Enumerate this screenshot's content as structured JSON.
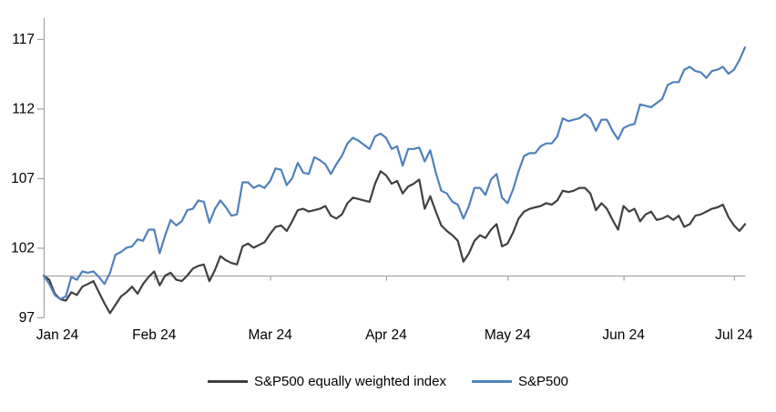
{
  "chart_data": {
    "type": "line",
    "title": "",
    "x_axis": {
      "labels": [
        "Jan 24",
        "Feb 24",
        "Mar 24",
        "Apr 24",
        "May 24",
        "Jun 24",
        "Jul 24"
      ],
      "tick_indices": [
        0,
        20,
        41,
        62,
        84,
        105,
        125
      ]
    },
    "y_axis": {
      "ticks": [
        117,
        112,
        107,
        102,
        97
      ],
      "min": 97,
      "max": 117,
      "baseline_value": 100
    },
    "grid": "off",
    "legend_position": "bottom-center",
    "series": [
      {
        "name": "S&P500 equally weighted index",
        "color": "#404040",
        "values": [
          100.0,
          99.7,
          98.7,
          98.3,
          98.2,
          98.8,
          98.6,
          99.2,
          99.4,
          99.6,
          98.8,
          98.0,
          97.3,
          97.9,
          98.5,
          98.8,
          99.2,
          98.7,
          99.4,
          99.9,
          100.3,
          99.3,
          100.0,
          100.2,
          99.7,
          99.6,
          100.0,
          100.5,
          100.7,
          100.8,
          99.6,
          100.4,
          101.4,
          101.1,
          100.9,
          100.8,
          102.1,
          102.3,
          102.0,
          102.2,
          102.4,
          103.0,
          103.5,
          103.6,
          103.2,
          103.9,
          104.7,
          104.8,
          104.6,
          104.7,
          104.8,
          105.0,
          104.3,
          104.1,
          104.4,
          105.2,
          105.6,
          105.5,
          105.4,
          105.3,
          106.6,
          107.5,
          107.2,
          106.6,
          106.8,
          105.9,
          106.4,
          106.6,
          106.9,
          104.8,
          105.7,
          104.6,
          103.6,
          103.2,
          102.9,
          102.5,
          101.0,
          101.6,
          102.5,
          102.9,
          102.7,
          103.3,
          103.7,
          102.1,
          102.3,
          103.1,
          104.1,
          104.6,
          104.8,
          104.9,
          105.0,
          105.2,
          105.1,
          105.4,
          106.1,
          106.0,
          106.1,
          106.3,
          106.3,
          105.9,
          104.7,
          105.2,
          104.8,
          104.0,
          103.3,
          105.0,
          104.6,
          104.8,
          103.9,
          104.4,
          104.6,
          104.0,
          104.1,
          104.3,
          104.0,
          104.3,
          103.5,
          103.7,
          104.3,
          104.4,
          104.6,
          104.8,
          104.9,
          105.1,
          104.2,
          103.6,
          103.2,
          103.7
        ]
      },
      {
        "name": "S&P500",
        "color": "#4f81bd",
        "values": [
          100.0,
          99.4,
          98.6,
          98.3,
          98.5,
          99.9,
          99.7,
          100.3,
          100.2,
          100.3,
          99.9,
          99.4,
          100.2,
          101.5,
          101.7,
          102.0,
          102.1,
          102.6,
          102.5,
          103.3,
          103.3,
          101.6,
          102.9,
          104.0,
          103.6,
          103.9,
          104.7,
          104.8,
          105.4,
          105.3,
          103.8,
          104.8,
          105.4,
          104.9,
          104.3,
          104.4,
          106.7,
          106.7,
          106.3,
          106.5,
          106.3,
          106.8,
          107.7,
          107.6,
          106.5,
          107.0,
          108.1,
          107.4,
          107.3,
          108.5,
          108.3,
          108.0,
          107.3,
          108.0,
          108.6,
          109.5,
          109.9,
          109.7,
          109.4,
          109.1,
          110.0,
          110.2,
          109.9,
          109.1,
          109.3,
          107.9,
          109.1,
          109.1,
          109.2,
          108.2,
          109.0,
          107.4,
          106.1,
          105.9,
          105.3,
          105.1,
          104.1,
          105.0,
          106.3,
          106.3,
          105.8,
          106.9,
          107.3,
          105.6,
          105.2,
          106.2,
          107.5,
          108.6,
          108.8,
          108.8,
          109.3,
          109.5,
          109.5,
          110.0,
          111.3,
          111.1,
          111.2,
          111.3,
          111.6,
          111.3,
          110.4,
          111.2,
          111.2,
          110.4,
          109.8,
          110.6,
          110.8,
          110.9,
          112.3,
          112.2,
          112.1,
          112.4,
          112.7,
          113.7,
          113.9,
          113.9,
          114.8,
          115.0,
          114.7,
          114.6,
          114.2,
          114.7,
          114.8,
          115.0,
          114.5,
          114.8,
          115.5,
          116.4
        ]
      }
    ]
  },
  "colors": {
    "axis_line": "#a6a6a6",
    "baseline": "#a6a6a6",
    "label_text": "#000000",
    "background": "#ffffff"
  }
}
